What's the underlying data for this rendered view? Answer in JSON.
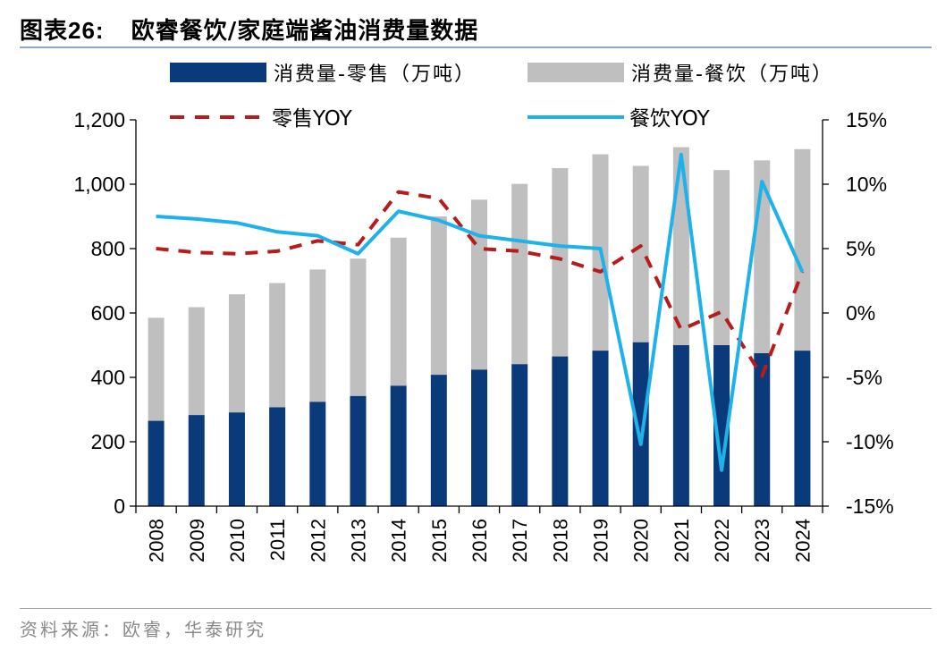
{
  "header": {
    "figure_label": "图表",
    "figure_number": "26:",
    "title": "欧睿餐饮/家庭端酱油消费量数据"
  },
  "footer": {
    "source": "资料来源：欧睿，华泰研究"
  },
  "colors": {
    "retail_bar": "#0b3a7a",
    "catering_bar": "#bfbfbf",
    "retail_yoy": "#b71c1c",
    "catering_yoy": "#1fb2ea"
  },
  "chart_data": {
    "type": "bar",
    "stacked": true,
    "categories": [
      "2008",
      "2009",
      "2010",
      "2011",
      "2012",
      "2013",
      "2014",
      "2015",
      "2016",
      "2017",
      "2018",
      "2019",
      "2020",
      "2021",
      "2022",
      "2023",
      "2024"
    ],
    "series": [
      {
        "name": "消费量-零售（万吨）",
        "type": "bar",
        "axis": "left",
        "values": [
          265,
          283,
          291,
          307,
          324,
          342,
          374,
          408,
          424,
          441,
          465,
          483,
          509,
          500,
          500,
          475,
          483
        ]
      },
      {
        "name": "消费量-餐饮（万吨）",
        "type": "bar",
        "axis": "left",
        "values": [
          320,
          335,
          367,
          386,
          411,
          427,
          460,
          492,
          528,
          560,
          585,
          610,
          548,
          615,
          544,
          599,
          626
        ]
      },
      {
        "name": "零售YOY",
        "type": "line",
        "style": "dashed",
        "axis": "right",
        "values": [
          5.0,
          4.7,
          4.6,
          4.8,
          5.6,
          5.3,
          9.4,
          8.9,
          5.0,
          4.8,
          4.2,
          3.2,
          5.2,
          -1.3,
          0.1,
          -4.9,
          3.2
        ]
      },
      {
        "name": "餐饮YOY",
        "type": "line",
        "style": "solid",
        "axis": "right",
        "values": [
          7.5,
          7.3,
          7.0,
          6.3,
          6.0,
          4.6,
          7.9,
          7.2,
          6.0,
          5.6,
          5.2,
          5.0,
          -10.2,
          12.3,
          -12.2,
          10.2,
          3.2
        ]
      }
    ],
    "left_axis": {
      "ylim": [
        0,
        1200
      ],
      "ticks": [
        0,
        200,
        400,
        600,
        800,
        1000,
        1200
      ],
      "tick_labels": [
        "0",
        "200",
        "400",
        "600",
        "800",
        "1,000",
        "1,200"
      ]
    },
    "right_axis": {
      "ylim": [
        -15,
        15
      ],
      "ticks": [
        -15,
        -10,
        -5,
        0,
        5,
        10,
        15
      ],
      "tick_labels": [
        "-15%",
        "-10%",
        "-5%",
        "0%",
        "5%",
        "10%",
        "15%"
      ]
    },
    "legend_position": "top"
  }
}
